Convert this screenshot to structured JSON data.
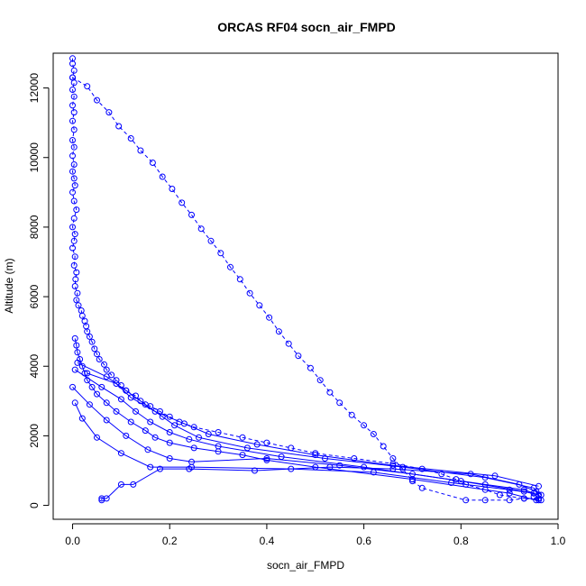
{
  "chart_data": {
    "type": "line",
    "title": "ORCAS RF04 socn_air_FMPD",
    "xlabel": "socn_air_FMPD",
    "ylabel": "Altitude (m)",
    "xlim": [
      -0.04,
      1.0
    ],
    "ylim": [
      -400,
      13000
    ],
    "xticks": [
      0.0,
      0.2,
      0.4,
      0.6,
      0.8,
      1.0
    ],
    "xtick_labels": [
      "0.0",
      "0.2",
      "0.4",
      "0.6",
      "0.8",
      "1.0"
    ],
    "yticks": [
      0,
      2000,
      4000,
      6000,
      8000,
      10000,
      12000
    ],
    "ytick_labels": [
      "0",
      "2000",
      "4000",
      "6000",
      "8000",
      "10000",
      "12000"
    ],
    "grid": false,
    "marker": "open-circle",
    "color": "#0000ff",
    "series": [
      {
        "line_style": "dashed",
        "points": [
          [
            0.0,
            12850
          ],
          [
            0.0,
            12700
          ],
          [
            0.003,
            12500
          ],
          [
            0.0,
            12300
          ],
          [
            0.003,
            12150
          ],
          [
            0.0,
            11950
          ],
          [
            0.003,
            11750
          ],
          [
            0.0,
            11500
          ],
          [
            0.003,
            11300
          ],
          [
            0.0,
            11050
          ],
          [
            0.003,
            10800
          ],
          [
            0.0,
            10500
          ],
          [
            0.003,
            10300
          ],
          [
            0.0,
            10050
          ],
          [
            0.003,
            9800
          ],
          [
            0.0,
            9600
          ],
          [
            0.003,
            9400
          ],
          [
            0.005,
            9200
          ],
          [
            0.0,
            9000
          ],
          [
            0.003,
            8750
          ],
          [
            0.008,
            8500
          ],
          [
            0.003,
            8250
          ],
          [
            0.0,
            8000
          ],
          [
            0.005,
            7800
          ],
          [
            0.003,
            7600
          ],
          [
            0.0,
            7400
          ],
          [
            0.005,
            7150
          ],
          [
            0.003,
            6900
          ],
          [
            0.008,
            6700
          ],
          [
            0.006,
            6500
          ],
          [
            0.005,
            6300
          ],
          [
            0.01,
            6100
          ],
          [
            0.008,
            5900
          ],
          [
            0.012,
            5750
          ],
          [
            0.018,
            5600
          ],
          [
            0.02,
            5450
          ],
          [
            0.025,
            5300
          ],
          [
            0.028,
            5150
          ],
          [
            0.03,
            5000
          ],
          [
            0.035,
            4850
          ],
          [
            0.04,
            4700
          ],
          [
            0.045,
            4500
          ],
          [
            0.05,
            4350
          ],
          [
            0.055,
            4200
          ],
          [
            0.065,
            4050
          ],
          [
            0.07,
            3900
          ],
          [
            0.08,
            3750
          ],
          [
            0.09,
            3600
          ],
          [
            0.1,
            3450
          ],
          [
            0.11,
            3300
          ],
          [
            0.13,
            3150
          ],
          [
            0.14,
            3000
          ],
          [
            0.16,
            2850
          ],
          [
            0.18,
            2700
          ],
          [
            0.2,
            2550
          ],
          [
            0.22,
            2400
          ],
          [
            0.25,
            2250
          ],
          [
            0.3,
            2100
          ],
          [
            0.35,
            1950
          ],
          [
            0.4,
            1800
          ],
          [
            0.45,
            1650
          ],
          [
            0.5,
            1500
          ],
          [
            0.58,
            1350
          ],
          [
            0.66,
            1200
          ],
          [
            0.72,
            1050
          ],
          [
            0.76,
            900
          ],
          [
            0.79,
            750
          ],
          [
            0.81,
            600
          ],
          [
            0.85,
            450
          ],
          [
            0.88,
            300
          ],
          [
            0.93,
            200
          ],
          [
            0.96,
            150
          ]
        ]
      },
      {
        "line_style": "dashed",
        "points": [
          [
            0.0,
            12300
          ],
          [
            0.03,
            12050
          ],
          [
            0.05,
            11650
          ],
          [
            0.075,
            11300
          ],
          [
            0.095,
            10900
          ],
          [
            0.12,
            10550
          ],
          [
            0.14,
            10200
          ],
          [
            0.165,
            9850
          ],
          [
            0.185,
            9450
          ],
          [
            0.205,
            9100
          ],
          [
            0.225,
            8700
          ],
          [
            0.245,
            8350
          ],
          [
            0.265,
            7950
          ],
          [
            0.285,
            7600
          ],
          [
            0.305,
            7250
          ],
          [
            0.325,
            6850
          ],
          [
            0.345,
            6500
          ],
          [
            0.365,
            6100
          ],
          [
            0.385,
            5750
          ],
          [
            0.405,
            5400
          ],
          [
            0.425,
            5000
          ],
          [
            0.445,
            4650
          ],
          [
            0.465,
            4300
          ],
          [
            0.49,
            3950
          ],
          [
            0.51,
            3600
          ],
          [
            0.53,
            3250
          ],
          [
            0.55,
            2950
          ],
          [
            0.575,
            2600
          ],
          [
            0.6,
            2300
          ],
          [
            0.62,
            2050
          ],
          [
            0.64,
            1700
          ],
          [
            0.66,
            1350
          ],
          [
            0.68,
            1050
          ],
          [
            0.7,
            700
          ],
          [
            0.72,
            500
          ],
          [
            0.81,
            150
          ],
          [
            0.85,
            150
          ],
          [
            0.9,
            150
          ],
          [
            0.93,
            200
          ],
          [
            0.96,
            200
          ],
          [
            0.965,
            150
          ]
        ]
      },
      {
        "line_style": "solid",
        "points": [
          [
            0.06,
            150
          ],
          [
            0.06,
            200
          ],
          [
            0.07,
            200
          ],
          [
            0.1,
            600
          ],
          [
            0.125,
            600
          ],
          [
            0.18,
            1050
          ],
          [
            0.24,
            1050
          ],
          [
            0.375,
            1000
          ],
          [
            0.53,
            1100
          ],
          [
            0.66,
            1050
          ],
          [
            0.82,
            900
          ],
          [
            0.92,
            600
          ],
          [
            0.955,
            400
          ],
          [
            0.96,
            300
          ],
          [
            0.96,
            200
          ],
          [
            0.955,
            150
          ],
          [
            0.9,
            350
          ],
          [
            0.7,
            750
          ],
          [
            0.5,
            1100
          ],
          [
            0.4,
            1300
          ],
          [
            0.35,
            1450
          ],
          [
            0.3,
            1550
          ],
          [
            0.25,
            1650
          ],
          [
            0.2,
            1800
          ],
          [
            0.17,
            1950
          ],
          [
            0.15,
            2150
          ],
          [
            0.12,
            2400
          ],
          [
            0.09,
            2700
          ],
          [
            0.07,
            2950
          ],
          [
            0.05,
            3200
          ],
          [
            0.04,
            3400
          ],
          [
            0.03,
            3600
          ],
          [
            0.025,
            3800
          ],
          [
            0.02,
            4000
          ],
          [
            0.015,
            4200
          ],
          [
            0.01,
            4400
          ],
          [
            0.008,
            4600
          ],
          [
            0.005,
            4800
          ]
        ]
      },
      {
        "line_style": "solid",
        "points": [
          [
            0.005,
            2950
          ],
          [
            0.02,
            2500
          ],
          [
            0.05,
            1950
          ],
          [
            0.1,
            1500
          ],
          [
            0.16,
            1100
          ],
          [
            0.245,
            1100
          ],
          [
            0.45,
            1050
          ],
          [
            0.62,
            950
          ],
          [
            0.78,
            650
          ],
          [
            0.9,
            450
          ],
          [
            0.95,
            350
          ],
          [
            0.95,
            250
          ]
        ]
      },
      {
        "line_style": "solid",
        "points": [
          [
            0.0,
            3400
          ],
          [
            0.035,
            2900
          ],
          [
            0.07,
            2450
          ],
          [
            0.11,
            2000
          ],
          [
            0.155,
            1600
          ],
          [
            0.2,
            1350
          ],
          [
            0.245,
            1250
          ],
          [
            0.4,
            1350
          ],
          [
            0.55,
            1150
          ],
          [
            0.7,
            900
          ],
          [
            0.85,
            600
          ],
          [
            0.93,
            450
          ],
          [
            0.95,
            350
          ]
        ]
      },
      {
        "line_style": "solid",
        "points": [
          [
            0.005,
            3900
          ],
          [
            0.06,
            3400
          ],
          [
            0.1,
            3050
          ],
          [
            0.13,
            2700
          ],
          [
            0.16,
            2400
          ],
          [
            0.2,
            2100
          ],
          [
            0.24,
            1900
          ],
          [
            0.3,
            1700
          ],
          [
            0.43,
            1400
          ],
          [
            0.6,
            1100
          ],
          [
            0.8,
            700
          ],
          [
            0.93,
            400
          ],
          [
            0.96,
            300
          ]
        ]
      },
      {
        "line_style": "solid",
        "points": [
          [
            0.01,
            4100
          ],
          [
            0.07,
            3700
          ],
          [
            0.11,
            3300
          ],
          [
            0.15,
            2900
          ],
          [
            0.185,
            2550
          ],
          [
            0.21,
            2300
          ],
          [
            0.26,
            1950
          ],
          [
            0.36,
            1650
          ],
          [
            0.52,
            1350
          ],
          [
            0.68,
            1100
          ],
          [
            0.85,
            800
          ],
          [
            0.95,
            500
          ],
          [
            0.965,
            300
          ]
        ]
      },
      {
        "line_style": "solid",
        "points": [
          [
            0.03,
            3800
          ],
          [
            0.09,
            3500
          ],
          [
            0.12,
            3100
          ],
          [
            0.17,
            2700
          ],
          [
            0.23,
            2350
          ],
          [
            0.28,
            2050
          ],
          [
            0.38,
            1750
          ],
          [
            0.5,
            1450
          ],
          [
            0.66,
            1150
          ],
          [
            0.87,
            850
          ],
          [
            0.96,
            550
          ]
        ]
      }
    ]
  }
}
